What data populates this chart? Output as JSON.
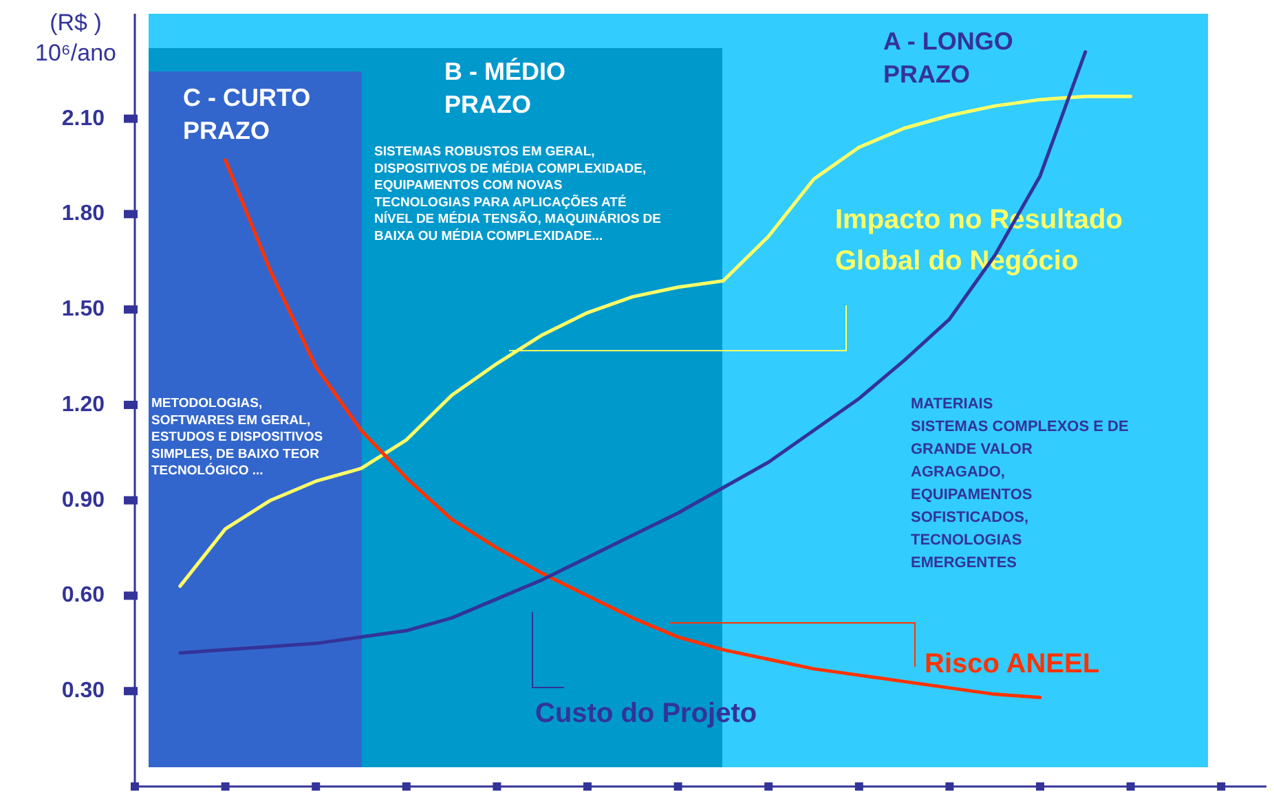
{
  "chart_data": {
    "type": "line",
    "ylabel": "(R$ )\n10⁶/ano",
    "categories": [
      null,
      null,
      null,
      null,
      null,
      null,
      null,
      null,
      null,
      null,
      null,
      null,
      null,
      null,
      null,
      null,
      null,
      null,
      null,
      null,
      null,
      null,
      null,
      null,
      null,
      null
    ],
    "ylim": [
      0,
      2.43
    ],
    "yticks": [
      {
        "value": 0.3,
        "label": "0.30"
      },
      {
        "value": 0.6,
        "label": "0.60"
      },
      {
        "value": 0.9,
        "label": "0.90"
      },
      {
        "value": 1.2,
        "label": "1.20"
      },
      {
        "value": 1.5,
        "label": "1.50"
      },
      {
        "value": 1.8,
        "label": "1.80"
      },
      {
        "value": 2.1,
        "label": "2.10"
      }
    ],
    "grid": false,
    "marker": "none",
    "line_style": "solid",
    "series": [
      {
        "name": "Impacto no Resultado\nGlobal do Negócio",
        "color": "#ffff66",
        "values": [
          null,
          0.63,
          0.81,
          0.9,
          0.96,
          1,
          1.09,
          1.23,
          1.33,
          1.42,
          1.49,
          1.54,
          1.57,
          1.59,
          1.73,
          1.91,
          2.01,
          2.07,
          2.11,
          2.14,
          2.16,
          2.17,
          2.17,
          null,
          null,
          null
        ]
      },
      {
        "name": "Risco ANEEL",
        "color": "#ff3300",
        "values": [
          null,
          null,
          1.97,
          1.62,
          1.32,
          1.12,
          0.97,
          0.84,
          0.75,
          0.67,
          0.6,
          0.53,
          0.47,
          0.43,
          0.4,
          0.37,
          0.35,
          0.33,
          0.31,
          0.29,
          0.28,
          null,
          null,
          null,
          null,
          null
        ]
      },
      {
        "name": "Custo do Projeto",
        "color": "#333399",
        "values": [
          null,
          0.42,
          0.43,
          0.44,
          0.45,
          0.47,
          0.49,
          0.53,
          0.59,
          0.65,
          0.72,
          0.79,
          0.86,
          0.94,
          1.02,
          1.12,
          1.22,
          1.34,
          1.47,
          1.67,
          1.92,
          2.31,
          null,
          null,
          null,
          null
        ]
      }
    ],
    "annotations": [
      "C - CURTO\nPRAZO",
      "B - MÉDIO\nPRAZO",
      "A - LONGO\nPRAZO",
      "METODOLOGIAS,\nSOFTWARES EM GERAL,\nESTUDOS E DISPOSITIVOS\nSIMPLES, DE BAIXO  TEOR\nTECNOLÓGICO ...",
      "SISTEMAS ROBUSTOS EM GERAL,\nDISPOSITIVOS DE MÉDIA COMPLEXIDADE,\nEQUIPAMENTOS COM NOVAS\nTECNOLOGIAS PARA APLICAÇÕES ATÉ\nNÍVEL DE MÉDIA TENSÃO, MAQUINÁRIOS DE\nBAIXA OU MÉDIA COMPLEXIDADE...",
      "MATERIAIS\nSISTEMAS COMPLEXOS E DE\nGRANDE VALOR\nAGRAGADO,\nEQUIPAMENTOS\nSOFISTICADOS,\nTECNOLOGIAS\nEMERGENTES"
    ]
  }
}
